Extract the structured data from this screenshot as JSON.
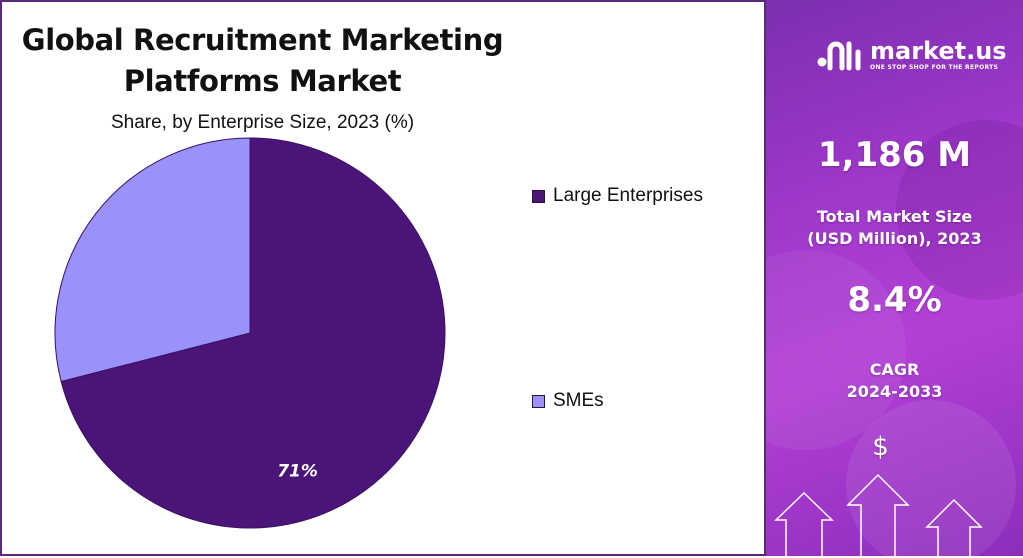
{
  "chart_data": {
    "type": "pie",
    "title": "Global Recruitment Marketing Platforms Market",
    "subtitle": "Share, by Enterprise Size, 2023 (%)",
    "slices": [
      {
        "name": "Large Enterprises",
        "value": 71,
        "label": "71%",
        "color": "#4b1478"
      },
      {
        "name": "SMEs",
        "value": 29,
        "label": "",
        "color": "#9a92fb"
      }
    ],
    "legend_position": "right"
  },
  "sidebar": {
    "brand": "market.us",
    "tagline": "ONE STOP SHOP FOR THE REPORTS",
    "market_size_value": "1,186 M",
    "market_size_label": [
      "Total Market Size",
      "(USD Million), 2023"
    ],
    "cagr_value": "8.4%",
    "cagr_label": [
      "CAGR",
      "2024-2033"
    ],
    "currency_symbol": "$"
  },
  "icons": [
    "market-us-logo-icon",
    "dollar-icon",
    "up-arrow-icon"
  ]
}
